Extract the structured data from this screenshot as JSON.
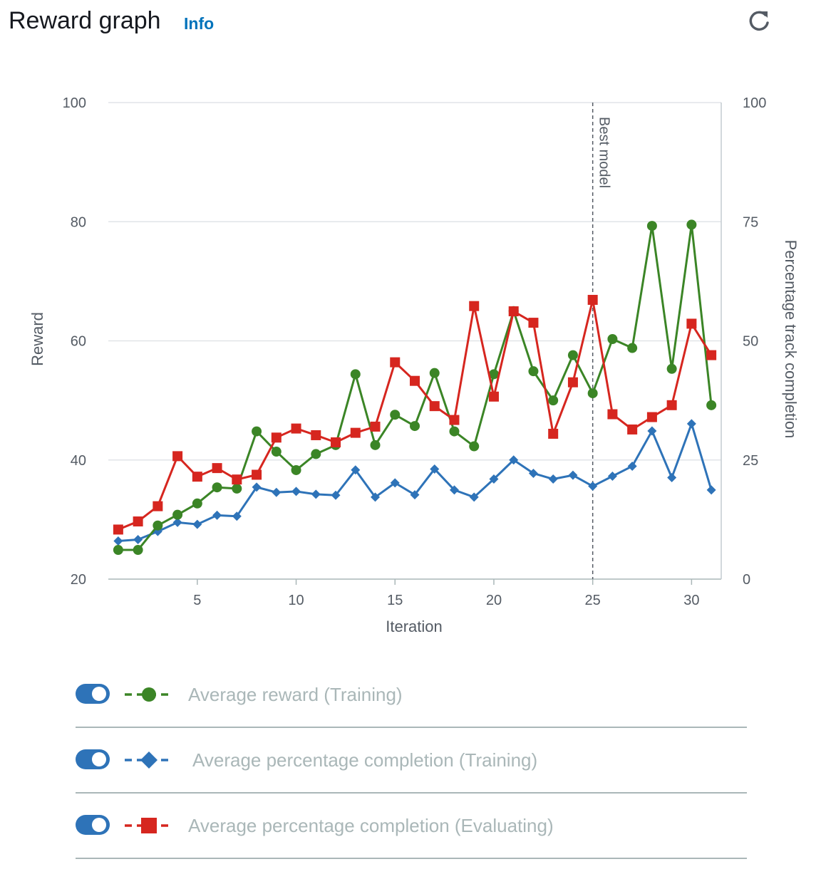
{
  "header": {
    "title": "Reward graph",
    "info_label": "Info",
    "refresh_icon": "refresh-icon"
  },
  "colors": {
    "reward": "#3b8526",
    "completion_training": "#2e73b8",
    "completion_evaluating": "#d6261f",
    "toggle": "#2e73b8",
    "best_model_line": "#545b64"
  },
  "chart_data": {
    "type": "line",
    "xlabel": "Iteration",
    "ylabel": "Reward",
    "y2label": "Percentage track completion",
    "xlim": [
      0.5,
      31.5
    ],
    "ylim": [
      20,
      100
    ],
    "y2lim": [
      0,
      100
    ],
    "x_ticks": [
      5,
      10,
      15,
      20,
      25,
      30
    ],
    "y_ticks": [
      20,
      40,
      60,
      80,
      100
    ],
    "y2_ticks": [
      0,
      25,
      50,
      75,
      100
    ],
    "grid": true,
    "best_model": {
      "x": 25,
      "label": "Best model"
    },
    "x": [
      1,
      2,
      3,
      4,
      5,
      6,
      7,
      8,
      9,
      10,
      11,
      12,
      13,
      14,
      15,
      16,
      17,
      18,
      19,
      20,
      21,
      22,
      23,
      24,
      25,
      26,
      27,
      28,
      29,
      30,
      31
    ],
    "series": [
      {
        "name": "Average reward (Training)",
        "axis": "left",
        "marker": "circle",
        "color": "#3b8526",
        "values": [
          24.9,
          24.9,
          29.0,
          30.8,
          32.7,
          35.4,
          35.2,
          44.8,
          41.4,
          38.3,
          41.0,
          42.5,
          54.4,
          42.5,
          47.6,
          45.7,
          54.6,
          44.8,
          42.3,
          54.4,
          65.0,
          54.9,
          50.0,
          57.6,
          51.2,
          60.3,
          58.8,
          79.3,
          55.3,
          79.5,
          49.2
        ]
      },
      {
        "name": "Average percentage completion (Training)",
        "axis": "right",
        "marker": "diamond",
        "color": "#2e73b8",
        "values": [
          8.0,
          8.3,
          10.0,
          11.9,
          11.5,
          13.4,
          13.2,
          19.3,
          18.2,
          18.4,
          17.8,
          17.6,
          22.9,
          17.2,
          20.2,
          17.7,
          23.1,
          18.7,
          17.2,
          21.0,
          25.0,
          22.2,
          21.0,
          21.8,
          19.5,
          21.6,
          23.7,
          31.1,
          21.3,
          32.6,
          18.7
        ]
      },
      {
        "name": "Average percentage completion (Evaluating)",
        "axis": "right",
        "marker": "square",
        "color": "#d6261f",
        "values": [
          10.4,
          12.1,
          15.3,
          25.8,
          21.5,
          23.3,
          20.9,
          21.9,
          29.7,
          31.6,
          30.2,
          28.7,
          30.7,
          32.0,
          45.5,
          41.6,
          36.3,
          33.4,
          57.3,
          38.3,
          56.2,
          53.8,
          30.5,
          41.3,
          58.6,
          34.6,
          31.4,
          34.0,
          36.5,
          53.6,
          47.0
        ]
      }
    ]
  },
  "legend": [
    {
      "label": "Average reward (Training)",
      "marker": "circle",
      "color": "#3b8526",
      "toggle_on": true,
      "toggle_icon": "toggle-on-icon"
    },
    {
      "label": "Average percentage completion (Training)",
      "marker": "diamond",
      "color": "#2e73b8",
      "toggle_on": true,
      "toggle_icon": "toggle-on-icon"
    },
    {
      "label": "Average percentage completion (Evaluating)",
      "marker": "square",
      "color": "#d6261f",
      "toggle_on": true,
      "toggle_icon": "toggle-on-icon"
    }
  ]
}
